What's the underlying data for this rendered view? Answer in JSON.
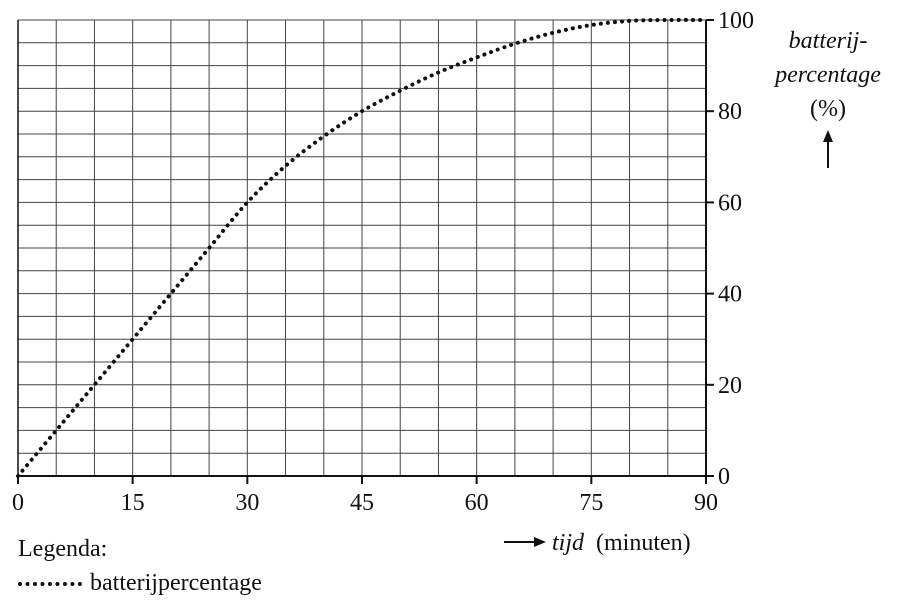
{
  "chart_data": {
    "type": "line",
    "x": [
      0,
      5,
      10,
      15,
      20,
      25,
      30,
      35,
      40,
      45,
      50,
      55,
      60,
      65,
      70,
      75,
      80,
      85,
      90
    ],
    "series": [
      {
        "name": "batterijpercentage",
        "values": [
          0,
          10,
          20,
          30,
          40,
          50,
          60,
          68,
          74.5,
          80,
          84.5,
          88.5,
          91.8,
          94.8,
          97.2,
          98.9,
          99.8,
          100,
          100
        ]
      }
    ],
    "xlim": [
      0,
      90
    ],
    "ylim": [
      0,
      100
    ],
    "x_ticks": [
      "0",
      "15",
      "30",
      "45",
      "60",
      "75",
      "90"
    ],
    "y_ticks": [
      "0",
      "20",
      "40",
      "60",
      "80",
      "100"
    ],
    "y_axis_side": "right",
    "grid": true,
    "line_style": "dotted",
    "xlabel_italic": "tijd",
    "xlabel_unit": "(minuten)",
    "ylabel_line1": "batterij-",
    "ylabel_line2": "percentage",
    "ylabel_unit": "(%)",
    "legend_title": "Legenda:",
    "legend_entry": "batterijpercentage",
    "legend_placement": "bottom-left"
  }
}
